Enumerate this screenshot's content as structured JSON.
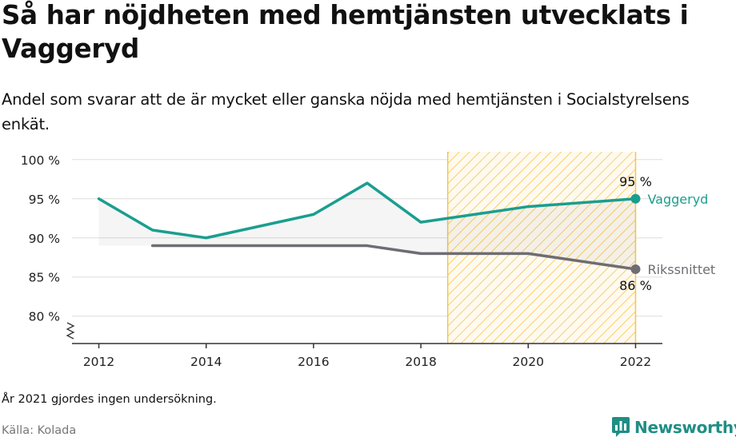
{
  "header": {
    "title": "Så har nöjdheten med hemtjänsten utvecklats i Vaggeryd",
    "subtitle": "Andel som svarar att de är mycket eller ganska nöjda med hemtjänsten i Socialstyrelsens enkät."
  },
  "footer": {
    "note": "År 2021 gjordes ingen undersökning.",
    "source": "Källa: Kolada",
    "brand": "Newsworthy"
  },
  "colors": {
    "vaggeryd": "#1a9e8f",
    "riket": "#6e6d73",
    "highlight": "#f5c54a",
    "brand": "#1f8e85"
  },
  "chart_data": {
    "type": "line",
    "x_ticks": [
      "2012",
      "2014",
      "2016",
      "2018",
      "2020",
      "2022"
    ],
    "y_ticks": [
      "80 %",
      "85 %",
      "90 %",
      "95 %",
      "100 %"
    ],
    "ylim": [
      76.5,
      101
    ],
    "xlim": [
      2011.5,
      2022.5
    ],
    "highlight_range": [
      2018.5,
      2022
    ],
    "series": [
      {
        "name": "Vaggeryd",
        "color": "#1a9e8f",
        "x": [
          2012,
          2013,
          2014,
          2016,
          2017,
          2018,
          2020,
          2022
        ],
        "y": [
          95,
          91,
          90,
          93,
          97,
          92,
          94,
          95
        ],
        "end_label": "95 %"
      },
      {
        "name": "Rikssnittet",
        "color": "#6e6d73",
        "x": [
          2013,
          2014,
          2016,
          2017,
          2018,
          2020,
          2022
        ],
        "y": [
          89,
          89,
          89,
          89,
          88,
          88,
          86
        ],
        "end_label": "86 %"
      }
    ]
  }
}
